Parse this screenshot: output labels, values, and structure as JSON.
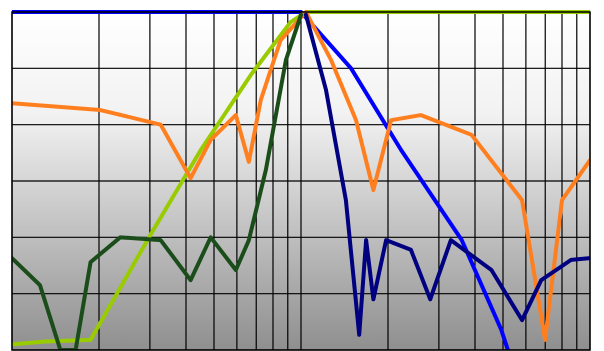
{
  "chart_data": {
    "type": "line",
    "xscale": "log",
    "grid": true,
    "xlim": [
      1,
      100
    ],
    "xticks": [
      1,
      2,
      3,
      4,
      5,
      6,
      7,
      8,
      9,
      10,
      20,
      30,
      40,
      50,
      60,
      70,
      80,
      90,
      100
    ],
    "ylim": [
      -60,
      0
    ],
    "yticks": [
      -60,
      -50,
      -40,
      -30,
      -20,
      -10,
      0
    ],
    "series": [
      {
        "color": "#0000ff",
        "x": [
          1,
          10,
          14.9,
          22.2,
          36,
          49.3,
          52
        ],
        "values": [
          0,
          0,
          -10,
          -24.5,
          -40.5,
          -56.4,
          -60
        ]
      },
      {
        "color": "#99cc00",
        "x": [
          1,
          1.3,
          1.87,
          3.01,
          4.5,
          6.7,
          9.2,
          10.4,
          100
        ],
        "values": [
          -59,
          -58.5,
          -58.2,
          -39.6,
          -24.5,
          -11.2,
          -1.8,
          0,
          0
        ]
      },
      {
        "color": "#ff7f1f",
        "x": [
          1,
          2.02,
          3.27,
          4.15,
          4.87,
          5.95,
          6.6,
          7.26,
          8.5,
          10.4,
          12.7,
          15.5,
          17.8,
          20.5,
          26,
          38.9,
          58.2,
          69.9,
          80,
          100
        ],
        "values": [
          -16.2,
          -17.4,
          -20,
          -29.5,
          -22.7,
          -18.3,
          -26.6,
          -15.6,
          -5,
          0,
          -8.5,
          -19.2,
          -31.6,
          -19.2,
          -18.3,
          -21.8,
          -33.4,
          -58.2,
          -33.4,
          -26.3
        ]
      },
      {
        "color": "#1a4d1a",
        "x": [
          1,
          1.25,
          1.47,
          1.66,
          1.87,
          2.37,
          3.27,
          4.15,
          4.87,
          5.95,
          6.6,
          7.56,
          8.87,
          10
        ],
        "values": [
          -43.7,
          -48.5,
          -60,
          -60,
          -44.4,
          -40,
          -40.5,
          -47.6,
          -40,
          -45.8,
          -40.5,
          -28,
          -8.5,
          -0.5
        ]
      },
      {
        "color": "#000080",
        "x": [
          10.4,
          12.2,
          14.3,
          15.9,
          16.8,
          17.8,
          19.7,
          24,
          28,
          33,
          45.6,
          58.2,
          67.8,
          86,
          100
        ],
        "values": [
          -0.5,
          -13.8,
          -33.4,
          -57.3,
          -40.5,
          -51,
          -40.5,
          -42.2,
          -51,
          -40.5,
          -45.8,
          -54.7,
          -47.6,
          -44,
          -43.7
        ]
      }
    ]
  }
}
